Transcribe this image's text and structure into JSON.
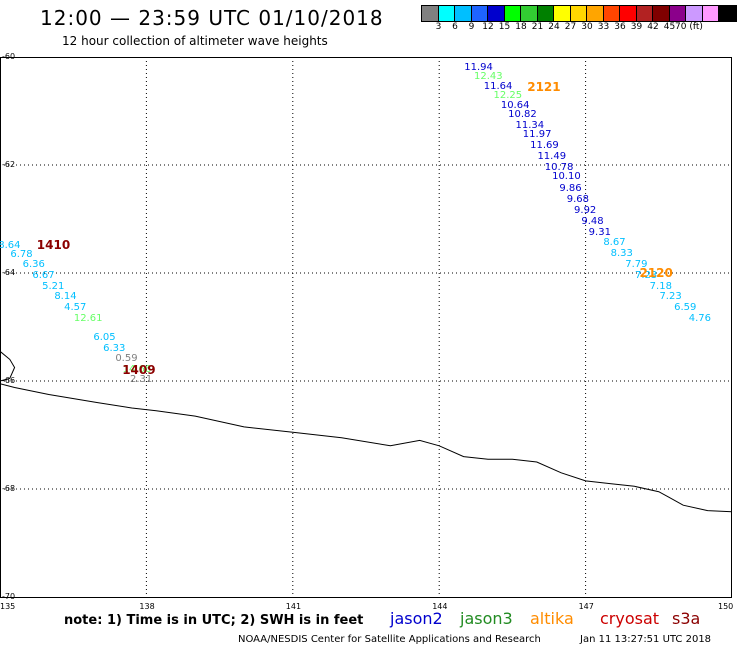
{
  "header": {
    "title": "12:00 — 23:59 UTC 01/10/2018",
    "subtitle": "12 hour collection of altimeter wave heights"
  },
  "colorbar": {
    "colors": [
      "#808080",
      "#00ffff",
      "#00bfff",
      "#1e64ff",
      "#0000cd",
      "#00ff00",
      "#32cd32",
      "#008000",
      "#ffff00",
      "#ffd700",
      "#ffa500",
      "#ff4500",
      "#ff0000",
      "#b22222",
      "#800000",
      "#8b008b",
      "#cc99ff",
      "#ff99ff",
      "#000000"
    ],
    "labels": [
      "3",
      "6",
      "9",
      "12",
      "15",
      "18",
      "21",
      "24",
      "27",
      "30",
      "33",
      "36",
      "39",
      "42",
      "45",
      "70 (ft)"
    ],
    "label_positions": [
      1,
      2,
      3,
      4,
      5,
      6,
      7,
      8,
      9,
      10,
      11,
      12,
      13,
      14,
      15,
      16.7
    ]
  },
  "map": {
    "lat_labels": [
      {
        "text": "-60",
        "lat": -60
      },
      {
        "text": "-62",
        "lat": -62
      },
      {
        "text": "-64",
        "lat": -64
      },
      {
        "text": "-66",
        "lat": -66
      },
      {
        "text": "-68",
        "lat": -68
      },
      {
        "text": "-70",
        "lat": -70
      }
    ],
    "lon_labels": [
      {
        "text": "135",
        "lon": 135
      },
      {
        "text": "138",
        "lon": 138
      },
      {
        "text": "141",
        "lon": 141
      },
      {
        "text": "144",
        "lon": 144
      },
      {
        "text": "147",
        "lon": 147
      },
      {
        "text": "150",
        "lon": 150
      }
    ],
    "grid_lons": [
      138,
      141,
      144,
      147
    ],
    "grid_lats": [
      -62,
      -64,
      -66,
      -68
    ],
    "lon_range": [
      135,
      150
    ],
    "lat_range": [
      -60,
      -70
    ],
    "coastline": [
      [
        135,
        -66.05
      ],
      [
        135.3,
        -66.12
      ],
      [
        136,
        -66.25
      ],
      [
        137,
        -66.4
      ],
      [
        137.7,
        -66.5
      ],
      [
        138.2,
        -66.55
      ],
      [
        139,
        -66.65
      ],
      [
        140,
        -66.85
      ],
      [
        141,
        -66.95
      ],
      [
        142,
        -67.05
      ],
      [
        143,
        -67.2
      ],
      [
        143.6,
        -67.1
      ],
      [
        144,
        -67.2
      ],
      [
        144.5,
        -67.4
      ],
      [
        145,
        -67.45
      ],
      [
        145.5,
        -67.45
      ],
      [
        146,
        -67.5
      ],
      [
        146.5,
        -67.7
      ],
      [
        147,
        -67.85
      ],
      [
        147.5,
        -67.9
      ],
      [
        148,
        -67.95
      ],
      [
        148.5,
        -68.05
      ],
      [
        148.7,
        -68.15
      ],
      [
        149,
        -68.3
      ],
      [
        149.5,
        -68.4
      ],
      [
        150,
        -68.42
      ]
    ],
    "coastline_stub": [
      [
        135,
        -65.45
      ],
      [
        135.2,
        -65.6
      ],
      [
        135.3,
        -65.75
      ],
      [
        135.2,
        -65.95
      ],
      [
        135.0,
        -66.0
      ]
    ]
  },
  "passes": [
    {
      "label": "1410",
      "color": "#8b0000",
      "lon": 136.0,
      "lat": -63.48
    },
    {
      "label": "1409",
      "color": "#8b0000",
      "lon": 137.75,
      "lat": -65.8
    },
    {
      "label": "2121",
      "color": "#ff8c00",
      "lon": 146.05,
      "lat": -60.55
    },
    {
      "label": "2120",
      "color": "#ff8c00",
      "lon": 148.35,
      "lat": -64.0
    }
  ],
  "values": [
    {
      "text": "8.64",
      "color": "#00bfff",
      "lon": 135.25,
      "lat": -63.5
    },
    {
      "text": "6.78",
      "color": "#00bfff",
      "lon": 135.5,
      "lat": -63.67
    },
    {
      "text": "6.36",
      "color": "#00bfff",
      "lon": 135.75,
      "lat": -63.85
    },
    {
      "text": "6.67",
      "color": "#00bfff",
      "lon": 135.95,
      "lat": -64.05
    },
    {
      "text": "5.21",
      "color": "#00bfff",
      "lon": 136.15,
      "lat": -64.25
    },
    {
      "text": "8.14",
      "color": "#00bfff",
      "lon": 136.4,
      "lat": -64.45
    },
    {
      "text": "4.57",
      "color": "#00bfff",
      "lon": 136.6,
      "lat": -64.65
    },
    {
      "text": "12.61",
      "color": "#66ff66",
      "lon": 136.8,
      "lat": -64.85
    },
    {
      "text": "6.05",
      "color": "#00bfff",
      "lon": 137.2,
      "lat": -65.2
    },
    {
      "text": "6.33",
      "color": "#00bfff",
      "lon": 137.4,
      "lat": -65.4
    },
    {
      "text": "0.59",
      "color": "#808080",
      "lon": 137.65,
      "lat": -65.6
    },
    {
      "text": "14.66",
      "color": "#66ff66",
      "lon": 137.8,
      "lat": -65.8
    },
    {
      "text": "2.31",
      "color": "#808080",
      "lon": 137.95,
      "lat": -65.98
    },
    {
      "text": "11.94",
      "color": "#0000cd",
      "lon": 144.8,
      "lat": -60.2
    },
    {
      "text": "12.43",
      "color": "#66ff66",
      "lon": 145.0,
      "lat": -60.37
    },
    {
      "text": "11.64",
      "color": "#0000cd",
      "lon": 145.2,
      "lat": -60.55
    },
    {
      "text": "12.25",
      "color": "#66ff66",
      "lon": 145.4,
      "lat": -60.72
    },
    {
      "text": "10.64",
      "color": "#0000cd",
      "lon": 145.55,
      "lat": -60.9
    },
    {
      "text": "10.82",
      "color": "#0000cd",
      "lon": 145.7,
      "lat": -61.08
    },
    {
      "text": "11.34",
      "color": "#0000cd",
      "lon": 145.85,
      "lat": -61.27
    },
    {
      "text": "11.97",
      "color": "#0000cd",
      "lon": 146.0,
      "lat": -61.45
    },
    {
      "text": "11.69",
      "color": "#0000cd",
      "lon": 146.15,
      "lat": -61.65
    },
    {
      "text": "11.49",
      "color": "#0000cd",
      "lon": 146.3,
      "lat": -61.85
    },
    {
      "text": "10.78",
      "color": "#0000cd",
      "lon": 146.45,
      "lat": -62.05
    },
    {
      "text": "10.10",
      "color": "#0000cd",
      "lon": 146.6,
      "lat": -62.23
    },
    {
      "text": "9.86",
      "color": "#0000cd",
      "lon": 146.75,
      "lat": -62.45
    },
    {
      "text": "9.68",
      "color": "#0000cd",
      "lon": 146.9,
      "lat": -62.65
    },
    {
      "text": "9.92",
      "color": "#0000cd",
      "lon": 147.05,
      "lat": -62.85
    },
    {
      "text": "9.48",
      "color": "#0000cd",
      "lon": 147.2,
      "lat": -63.05
    },
    {
      "text": "9.31",
      "color": "#0000cd",
      "lon": 147.35,
      "lat": -63.25
    },
    {
      "text": "8.67",
      "color": "#00bfff",
      "lon": 147.65,
      "lat": -63.45
    },
    {
      "text": "8.33",
      "color": "#00bfff",
      "lon": 147.8,
      "lat": -63.65
    },
    {
      "text": "7.79",
      "color": "#00bfff",
      "lon": 148.1,
      "lat": -63.85
    },
    {
      "text": "7.23",
      "color": "#00bfff",
      "lon": 148.3,
      "lat": -64.05
    },
    {
      "text": "7.18",
      "color": "#00bfff",
      "lon": 148.6,
      "lat": -64.25
    },
    {
      "text": "7.23",
      "color": "#00bfff",
      "lon": 148.8,
      "lat": -64.45
    },
    {
      "text": "6.59",
      "color": "#00bfff",
      "lon": 149.1,
      "lat": -64.65
    },
    {
      "text": "4.76",
      "color": "#00bfff",
      "lon": 149.4,
      "lat": -64.85
    }
  ],
  "footer": {
    "note": "note:  1) Time is in UTC;  2) SWH is in feet",
    "legend": [
      {
        "name": "jason2",
        "color": "#0000cd"
      },
      {
        "name": "jason3",
        "color": "#228b22"
      },
      {
        "name": "altika",
        "color": "#ff8c00"
      },
      {
        "name": "cryosat",
        "color": "#cc0000"
      },
      {
        "name": "s3a",
        "color": "#8b0000"
      }
    ],
    "credit": "NOAA/NESDIS Center for Satellite Applications and Research",
    "timestamp": "Jan 11 13:27:51 UTC 2018"
  }
}
